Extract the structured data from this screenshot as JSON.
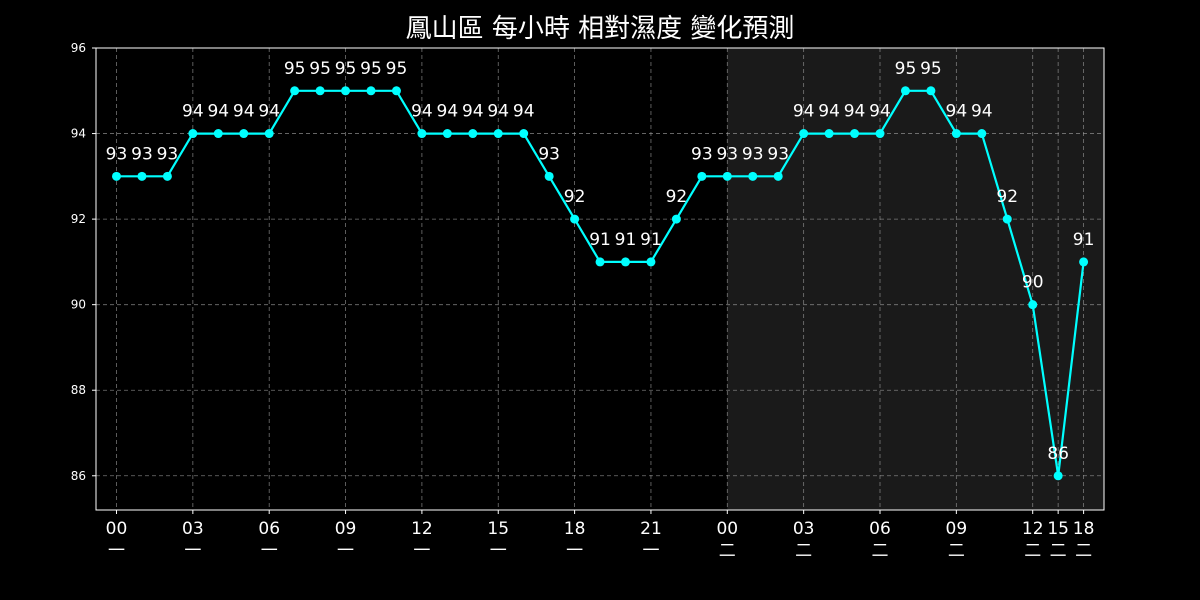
{
  "chart_data": {
    "type": "line",
    "title": "鳳山區 每小時 相對濕度 變化預測",
    "xlabel": "",
    "ylabel": "",
    "ylim": [
      85.2,
      96
    ],
    "yticks": [
      86,
      88,
      90,
      92,
      94,
      96
    ],
    "grid": true,
    "colors": {
      "background": "#000000",
      "shade": "#1a1a1a",
      "line": "#00ffff",
      "text": "#ffffff",
      "grid": "#9a9a9a"
    },
    "shaded_from_index": 24,
    "x_tick_labels": [
      {
        "index": 0,
        "hour": "00",
        "day": "一"
      },
      {
        "index": 3,
        "hour": "03",
        "day": "一"
      },
      {
        "index": 6,
        "hour": "06",
        "day": "一"
      },
      {
        "index": 9,
        "hour": "09",
        "day": "一"
      },
      {
        "index": 12,
        "hour": "12",
        "day": "一"
      },
      {
        "index": 15,
        "hour": "15",
        "day": "一"
      },
      {
        "index": 18,
        "hour": "18",
        "day": "一"
      },
      {
        "index": 21,
        "hour": "21",
        "day": "一"
      },
      {
        "index": 24,
        "hour": "00",
        "day": "二"
      },
      {
        "index": 27,
        "hour": "03",
        "day": "二"
      },
      {
        "index": 30,
        "hour": "06",
        "day": "二"
      },
      {
        "index": 33,
        "hour": "09",
        "day": "二"
      },
      {
        "index": 36,
        "hour": "12",
        "day": "二"
      },
      {
        "index": 37,
        "hour": "15",
        "day": "二"
      },
      {
        "index": 38,
        "hour": "18",
        "day": "二"
      }
    ],
    "values": [
      93,
      93,
      93,
      94,
      94,
      94,
      94,
      95,
      95,
      95,
      95,
      95,
      94,
      94,
      94,
      94,
      94,
      93,
      92,
      91,
      91,
      91,
      92,
      93,
      93,
      93,
      93,
      94,
      94,
      94,
      94,
      95,
      95,
      94,
      94,
      92,
      90,
      86,
      91
    ]
  }
}
